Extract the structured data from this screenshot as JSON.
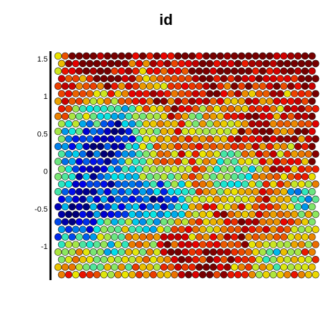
{
  "chart_data": {
    "type": "heatmap",
    "subtype": "hexagonal-grid",
    "title": "id",
    "xlabel": "",
    "ylabel": "",
    "ylim": [
      -1.45,
      1.6
    ],
    "yticks": [
      1.5,
      1,
      0.5,
      0,
      -0.5,
      -1
    ],
    "ytick_labels": [
      "1.5",
      "1",
      "0.5",
      "0",
      "-0.5",
      "-1"
    ],
    "x_axis_visible": false,
    "colormap": "jet",
    "color_value_range": [
      0,
      1
    ],
    "grid_columns": 37,
    "grid_rows": 30,
    "cell_shape": "circle",
    "grid": false,
    "legend": "none",
    "colors": {
      "dark_blue": "#0000c8",
      "blue": "#1f5ae6",
      "light_blue": "#3c96e6",
      "cyan": "#19e1f0",
      "yellow": "#ffd200",
      "orange": "#ff8c00",
      "red_orange": "#ff5a1e",
      "red": "#dc140a"
    }
  }
}
